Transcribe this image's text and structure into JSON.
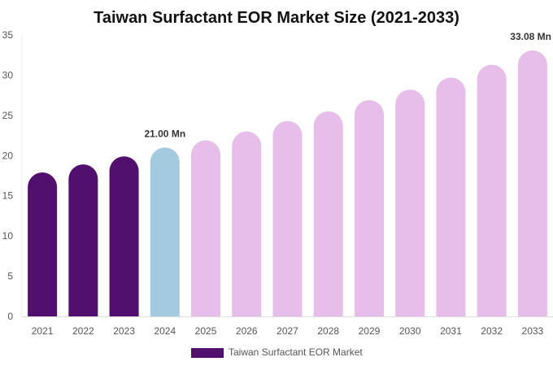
{
  "chart_data": {
    "type": "bar",
    "title": "Taiwan Surfactant EOR Market Size (2021-2033)",
    "xlabel": "",
    "ylabel": "",
    "categories": [
      "2021",
      "2022",
      "2023",
      "2024",
      "2025",
      "2026",
      "2027",
      "2028",
      "2029",
      "2030",
      "2031",
      "2032",
      "2033"
    ],
    "series": [
      {
        "name": "Taiwan Surfactant EOR Market",
        "values": [
          17.9,
          18.9,
          19.9,
          21.0,
          21.9,
          23.0,
          24.3,
          25.5,
          26.9,
          28.2,
          29.7,
          31.3,
          33.08
        ]
      }
    ],
    "bar_colors": [
      "#52106e",
      "#52106e",
      "#52106e",
      "#a3cadf",
      "#e7bde9",
      "#e7bde9",
      "#e7bde9",
      "#e7bde9",
      "#e7bde9",
      "#e7bde9",
      "#e7bde9",
      "#e7bde9",
      "#e7bde9"
    ],
    "legend_color": "#52106e",
    "data_labels": [
      {
        "index": 3,
        "text": "21.00 Mn"
      },
      {
        "index": 12,
        "text": "33.08 Mn"
      }
    ],
    "ylim": [
      0,
      35
    ],
    "yticks": [
      0,
      5,
      10,
      15,
      20,
      25,
      30,
      35
    ],
    "grid": false,
    "legend_position": "bottom"
  }
}
